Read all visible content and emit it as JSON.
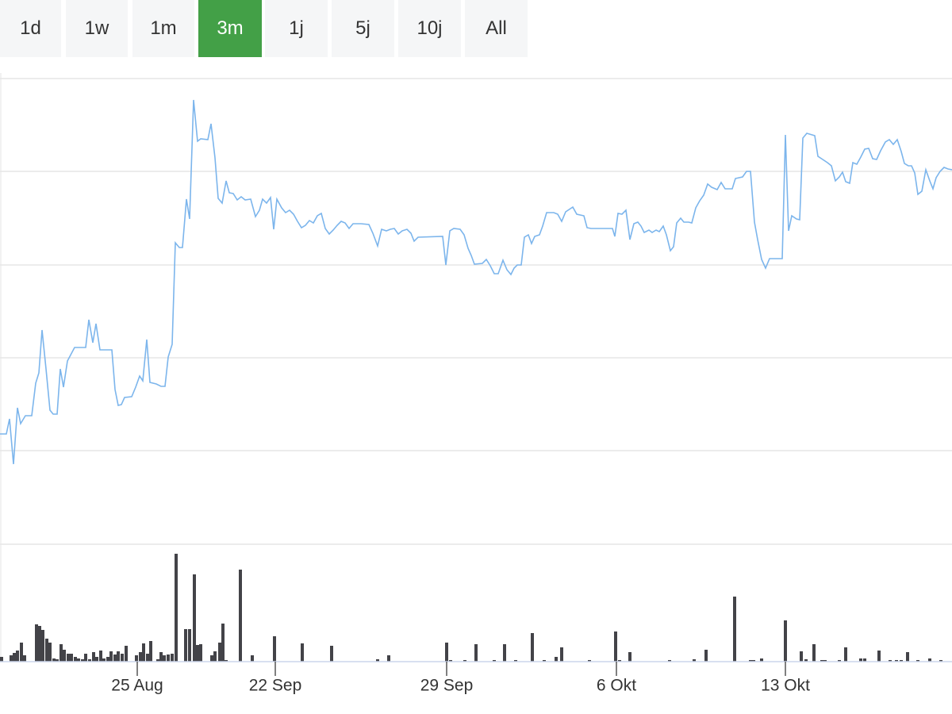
{
  "range_buttons": [
    "1d",
    "1w",
    "1m",
    "3m",
    "1j",
    "5j",
    "10j",
    "All"
  ],
  "active_button": 3,
  "chart_data": [
    {
      "type": "line",
      "color": "#7cb5ec",
      "grid": true,
      "xlim": [
        0,
        1200
      ],
      "ylim": [
        0,
        587
      ],
      "yticks": [
        0,
        118,
        235,
        352,
        470,
        587
      ],
      "x": [
        0,
        8,
        12,
        17,
        22,
        26,
        32,
        40,
        45,
        49,
        53,
        58,
        63,
        67,
        72,
        76,
        80,
        85,
        94,
        108,
        112,
        117,
        121,
        126,
        141,
        145,
        149,
        153,
        157,
        166,
        171,
        176,
        180,
        185,
        189,
        197,
        203,
        208,
        212,
        217,
        221,
        226,
        230,
        235,
        239,
        244,
        249,
        253,
        262,
        266,
        271,
        275,
        280,
        285,
        289,
        294,
        299,
        304,
        309,
        316,
        322,
        327,
        331,
        336,
        341,
        345,
        349,
        355,
        360,
        365,
        370,
        375,
        380,
        385,
        390,
        395,
        400,
        405,
        410,
        415,
        420,
        425,
        430,
        435,
        440,
        445,
        455,
        465,
        470,
        476,
        481,
        487,
        492,
        497,
        502,
        507,
        513,
        518,
        522,
        527,
        558,
        562,
        567,
        572,
        580,
        585,
        590,
        594,
        598,
        608,
        613,
        618,
        623,
        628,
        634,
        639,
        644,
        648,
        652,
        657,
        661,
        666,
        670,
        674,
        680,
        684,
        689,
        698,
        703,
        708,
        713,
        722,
        727,
        736,
        740,
        745,
        772,
        775,
        779,
        784,
        789,
        794,
        799,
        804,
        808,
        812,
        818,
        822,
        827,
        831,
        836,
        840,
        845,
        849,
        853,
        858,
        862,
        868,
        872,
        877,
        882,
        887,
        892,
        897,
        904,
        909,
        914,
        923,
        927,
        936,
        941,
        946,
        951,
        955,
        960,
        965,
        970,
        986,
        990,
        994,
        998,
        1004,
        1008,
        1012,
        1017,
        1027,
        1031,
        1037,
        1043,
        1048,
        1053,
        1058,
        1062,
        1066,
        1071,
        1075,
        1080,
        1085,
        1090,
        1095,
        1100,
        1105,
        1110,
        1116,
        1121,
        1126,
        1131,
        1136,
        1140,
        1145,
        1149,
        1153,
        1157,
        1162,
        1167,
        1172,
        1176,
        1180,
        1185,
        1190,
        1195,
        1200
      ],
      "values": [
        139,
        139,
        158,
        101,
        172,
        152,
        162,
        162,
        203,
        216,
        270,
        221,
        169,
        164,
        164,
        221,
        198,
        231,
        248,
        248,
        283,
        254,
        278,
        245,
        245,
        195,
        175,
        176,
        185,
        186,
        198,
        212,
        206,
        258,
        204,
        202,
        199,
        199,
        236,
        252,
        380,
        374,
        374,
        435,
        410,
        560,
        508,
        511,
        510,
        530,
        487,
        436,
        430,
        458,
        443,
        442,
        434,
        438,
        434,
        435,
        413,
        421,
        435,
        430,
        437,
        397,
        435,
        424,
        418,
        421,
        416,
        407,
        399,
        402,
        408,
        405,
        414,
        417,
        398,
        391,
        396,
        402,
        407,
        405,
        398,
        404,
        404,
        403,
        392,
        376,
        397,
        395,
        397,
        398,
        391,
        395,
        397,
        392,
        382,
        387,
        388,
        352,
        395,
        398,
        397,
        390,
        373,
        364,
        353,
        354,
        359,
        351,
        341,
        341,
        358,
        346,
        340,
        348,
        352,
        352,
        387,
        390,
        379,
        388,
        390,
        401,
        418,
        418,
        416,
        407,
        419,
        425,
        416,
        414,
        399,
        398,
        398,
        388,
        417,
        416,
        421,
        384,
        404,
        406,
        401,
        393,
        396,
        393,
        396,
        394,
        401,
        390,
        370,
        375,
        405,
        411,
        406,
        406,
        405,
        424,
        433,
        440,
        454,
        450,
        447,
        456,
        448,
        448,
        461,
        463,
        470,
        470,
        406,
        384,
        359,
        348,
        360,
        360,
        516,
        395,
        414,
        410,
        409,
        512,
        518,
        515,
        489,
        485,
        481,
        477,
        458,
        463,
        469,
        457,
        455,
        481,
        479,
        488,
        498,
        499,
        486,
        485,
        496,
        507,
        510,
        504,
        510,
        495,
        480,
        477,
        477,
        468,
        441,
        445,
        472,
        458,
        448,
        462,
        470,
        475,
        473,
        472
      ]
    },
    {
      "type": "bar",
      "color": "#434348",
      "xlim": [
        0,
        1200
      ],
      "ylim": [
        0,
        148
      ],
      "xticks": [
        {
          "value": 173,
          "label": "25 Aug"
        },
        {
          "value": 347,
          "label": "22 Sep"
        },
        {
          "value": 563,
          "label": "29 Sep"
        },
        {
          "value": 777,
          "label": "6 Okt"
        },
        {
          "value": 990,
          "label": "13 Okt"
        }
      ],
      "x": [
        2,
        14,
        18,
        22,
        27,
        31,
        46,
        50,
        54,
        59,
        63,
        68,
        72,
        77,
        81,
        86,
        90,
        95,
        99,
        104,
        108,
        113,
        118,
        122,
        127,
        131,
        136,
        140,
        145,
        149,
        154,
        159,
        172,
        177,
        181,
        186,
        190,
        199,
        203,
        207,
        212,
        217,
        222,
        234,
        239,
        245,
        249,
        253,
        267,
        271,
        277,
        281,
        285,
        303,
        318,
        346,
        381,
        418,
        476,
        490,
        563,
        568,
        586,
        600,
        623,
        636,
        650,
        671,
        686,
        701,
        708,
        743,
        776,
        781,
        794,
        844,
        875,
        890,
        926,
        946,
        950,
        960,
        990,
        1010,
        1016,
        1026,
        1036,
        1040,
        1058,
        1066,
        1085,
        1090,
        1108,
        1122,
        1130,
        1136,
        1144,
        1157,
        1172,
        1186
      ],
      "values": [
        6,
        8,
        11,
        14,
        24,
        8,
        47,
        45,
        40,
        29,
        24,
        4,
        3,
        22,
        15,
        10,
        10,
        6,
        4,
        3,
        10,
        3,
        12,
        6,
        14,
        4,
        6,
        13,
        9,
        13,
        10,
        20,
        8,
        12,
        23,
        10,
        26,
        3,
        12,
        8,
        9,
        10,
        136,
        41,
        41,
        110,
        21,
        22,
        8,
        13,
        24,
        48,
        2,
        116,
        8,
        32,
        23,
        20,
        3,
        8,
        24,
        2,
        2,
        22,
        2,
        22,
        2,
        36,
        2,
        6,
        18,
        2,
        38,
        2,
        12,
        2,
        3,
        15,
        82,
        2,
        2,
        4,
        52,
        13,
        3,
        22,
        2,
        2,
        2,
        18,
        4,
        4,
        14,
        2,
        2,
        2,
        12,
        2,
        4,
        2
      ]
    }
  ]
}
